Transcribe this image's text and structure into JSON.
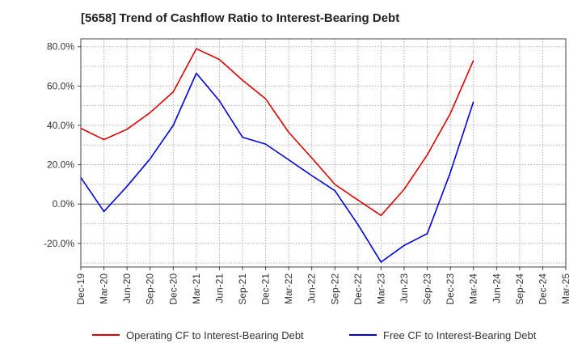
{
  "title": "[5658]  Trend of Cashflow Ratio to Interest-Bearing Debt",
  "chart_data": {
    "type": "line",
    "title": "[5658]  Trend of Cashflow Ratio to Interest-Bearing Debt",
    "xlabel": "",
    "ylabel": "",
    "categories": [
      "Dec-19",
      "Mar-20",
      "Jun-20",
      "Sep-20",
      "Dec-20",
      "Mar-21",
      "Jun-21",
      "Sep-21",
      "Dec-21",
      "Mar-22",
      "Jun-22",
      "Sep-22",
      "Dec-22",
      "Mar-23",
      "Jun-23",
      "Sep-23",
      "Dec-23",
      "Mar-24",
      "Jun-24",
      "Sep-24",
      "Dec-24",
      "Mar-25"
    ],
    "y_ticks": [
      -20,
      0,
      20,
      40,
      60,
      80
    ],
    "y_tick_labels": [
      "-20.0%",
      "0.0%",
      "20.0%",
      "40.0%",
      "60.0%",
      "80.0%"
    ],
    "ylim": [
      -32,
      84
    ],
    "grid": true,
    "legend_position": "bottom",
    "series": [
      {
        "name": "Operating CF to Interest-Bearing Debt",
        "color": "#dd0000",
        "values": [
          38.5,
          32.8,
          38.0,
          46.5,
          57.0,
          79.0,
          73.5,
          63.0,
          53.5,
          36.5,
          23.5,
          10.0,
          2.0,
          -5.8,
          7.5,
          25.0,
          46.0,
          73.0,
          null,
          null,
          null,
          null
        ]
      },
      {
        "name": "Free CF to Interest-Bearing Debt",
        "color": "#0000dd",
        "values": [
          13.5,
          -3.8,
          9.0,
          23.0,
          40.0,
          66.5,
          52.5,
          34.0,
          30.5,
          22.5,
          14.5,
          6.8,
          -10.5,
          -29.5,
          -21.0,
          -15.0,
          16.0,
          52.0,
          null,
          null,
          null,
          null
        ]
      }
    ]
  }
}
